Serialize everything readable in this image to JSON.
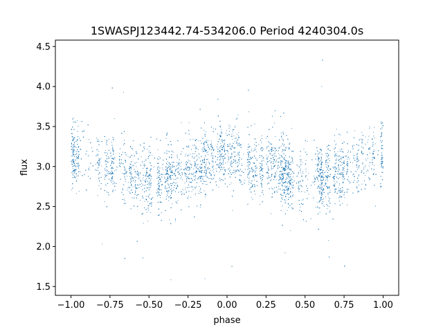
{
  "chart_data": {
    "type": "scatter",
    "title": "1SWASPJ123442.74-534206.0 Period 4240304.0s",
    "xlabel": "phase",
    "ylabel": "flux",
    "xlim": [
      -1.1,
      1.1
    ],
    "ylim": [
      1.39,
      4.58
    ],
    "xticks": [
      -1.0,
      -0.75,
      -0.5,
      -0.25,
      0.0,
      0.25,
      0.5,
      0.75,
      1.0
    ],
    "xtick_labels": [
      "−1.00",
      "−0.75",
      "−0.50",
      "−0.25",
      "0.00",
      "0.25",
      "0.50",
      "0.75",
      "1.00"
    ],
    "yticks": [
      1.5,
      2.0,
      2.5,
      3.0,
      3.5,
      4.0,
      4.5
    ],
    "ytick_labels": [
      "1.5",
      "2.0",
      "2.5",
      "3.0",
      "3.5",
      "4.0",
      "4.5"
    ],
    "grid": false,
    "marker_color": "#1f77b4",
    "series": [
      {
        "phase_range": [
          -1.0,
          1.0
        ],
        "flux_profile": {
          "phase": [
            0.0,
            0.05,
            0.1,
            0.15,
            0.2,
            0.25,
            0.3,
            0.35,
            0.4,
            0.45,
            0.5,
            0.55,
            0.6,
            0.65,
            0.7,
            0.75,
            0.8,
            0.85,
            0.9,
            0.95,
            1.0
          ],
          "flux": [
            3.15,
            3.12,
            3.08,
            3.02,
            2.98,
            3.02,
            3.05,
            2.95,
            2.88,
            2.82,
            2.8,
            2.82,
            2.85,
            2.88,
            2.95,
            2.95,
            2.98,
            3.02,
            3.1,
            3.15,
            3.15
          ]
        },
        "flux_scatter_sigma": 0.2,
        "flux_outlier_range": [
          1.55,
          4.35
        ],
        "point_count": 9000
      }
    ]
  }
}
